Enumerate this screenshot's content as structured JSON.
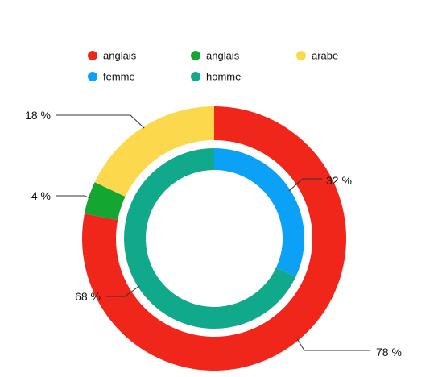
{
  "chart_data": {
    "type": "pie",
    "title": "",
    "legend": {
      "placement": "top",
      "entries": [
        {
          "label": "anglais",
          "color": "#f0261b"
        },
        {
          "label": "anglais",
          "color": "#13a630"
        },
        {
          "label": "arabe",
          "color": "#fcd94c"
        },
        {
          "label": "femme",
          "color": "#0aa1f6"
        },
        {
          "label": "homme",
          "color": "#11a98b"
        }
      ]
    },
    "rings": [
      {
        "ring": "outer",
        "slices": [
          {
            "name": "anglais",
            "value": 78,
            "label": "78 %",
            "color": "#f0261b"
          },
          {
            "name": "anglais",
            "value": 4,
            "label": "4 %",
            "color": "#13a630"
          },
          {
            "name": "arabe",
            "value": 18,
            "label": "18 %",
            "color": "#fcd94c"
          }
        ]
      },
      {
        "ring": "inner",
        "slices": [
          {
            "name": "femme",
            "value": 32,
            "label": "32 %",
            "color": "#0aa1f6"
          },
          {
            "name": "homme",
            "value": 68,
            "label": "68 %",
            "color": "#11a98b"
          }
        ]
      }
    ]
  }
}
